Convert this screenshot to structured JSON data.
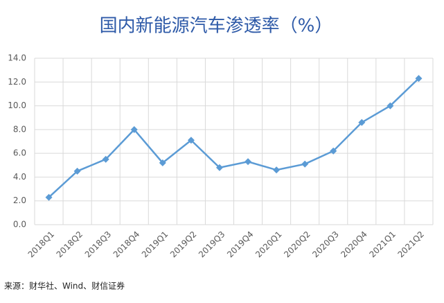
{
  "chart_data": {
    "type": "line",
    "title": "国内新能源汽车渗透率（%）",
    "categories": [
      "2018Q1",
      "2018Q2",
      "2018Q3",
      "2018Q4",
      "2019Q1",
      "2019Q2",
      "2019Q3",
      "2019Q4",
      "2020Q1",
      "2020Q2",
      "2020Q3",
      "2020Q4",
      "2021Q1",
      "2021Q2"
    ],
    "values": [
      2.3,
      4.5,
      5.5,
      8.0,
      5.2,
      7.1,
      4.8,
      5.3,
      4.6,
      5.1,
      6.2,
      8.6,
      10.0,
      12.3
    ],
    "color": "#5b9bd5",
    "ylim": [
      0,
      14
    ],
    "yticks": [
      {
        "value": 0,
        "label": "0.0"
      },
      {
        "value": 2,
        "label": "2.0"
      },
      {
        "value": 4,
        "label": "4.0"
      },
      {
        "value": 6,
        "label": "6.0"
      },
      {
        "value": 8,
        "label": "8.0"
      },
      {
        "value": 10,
        "label": "10.0"
      },
      {
        "value": 12,
        "label": "12.0"
      },
      {
        "value": 14,
        "label": "14.0"
      }
    ],
    "grid": true,
    "source": "来源：财华社、Wind、财信证券"
  }
}
